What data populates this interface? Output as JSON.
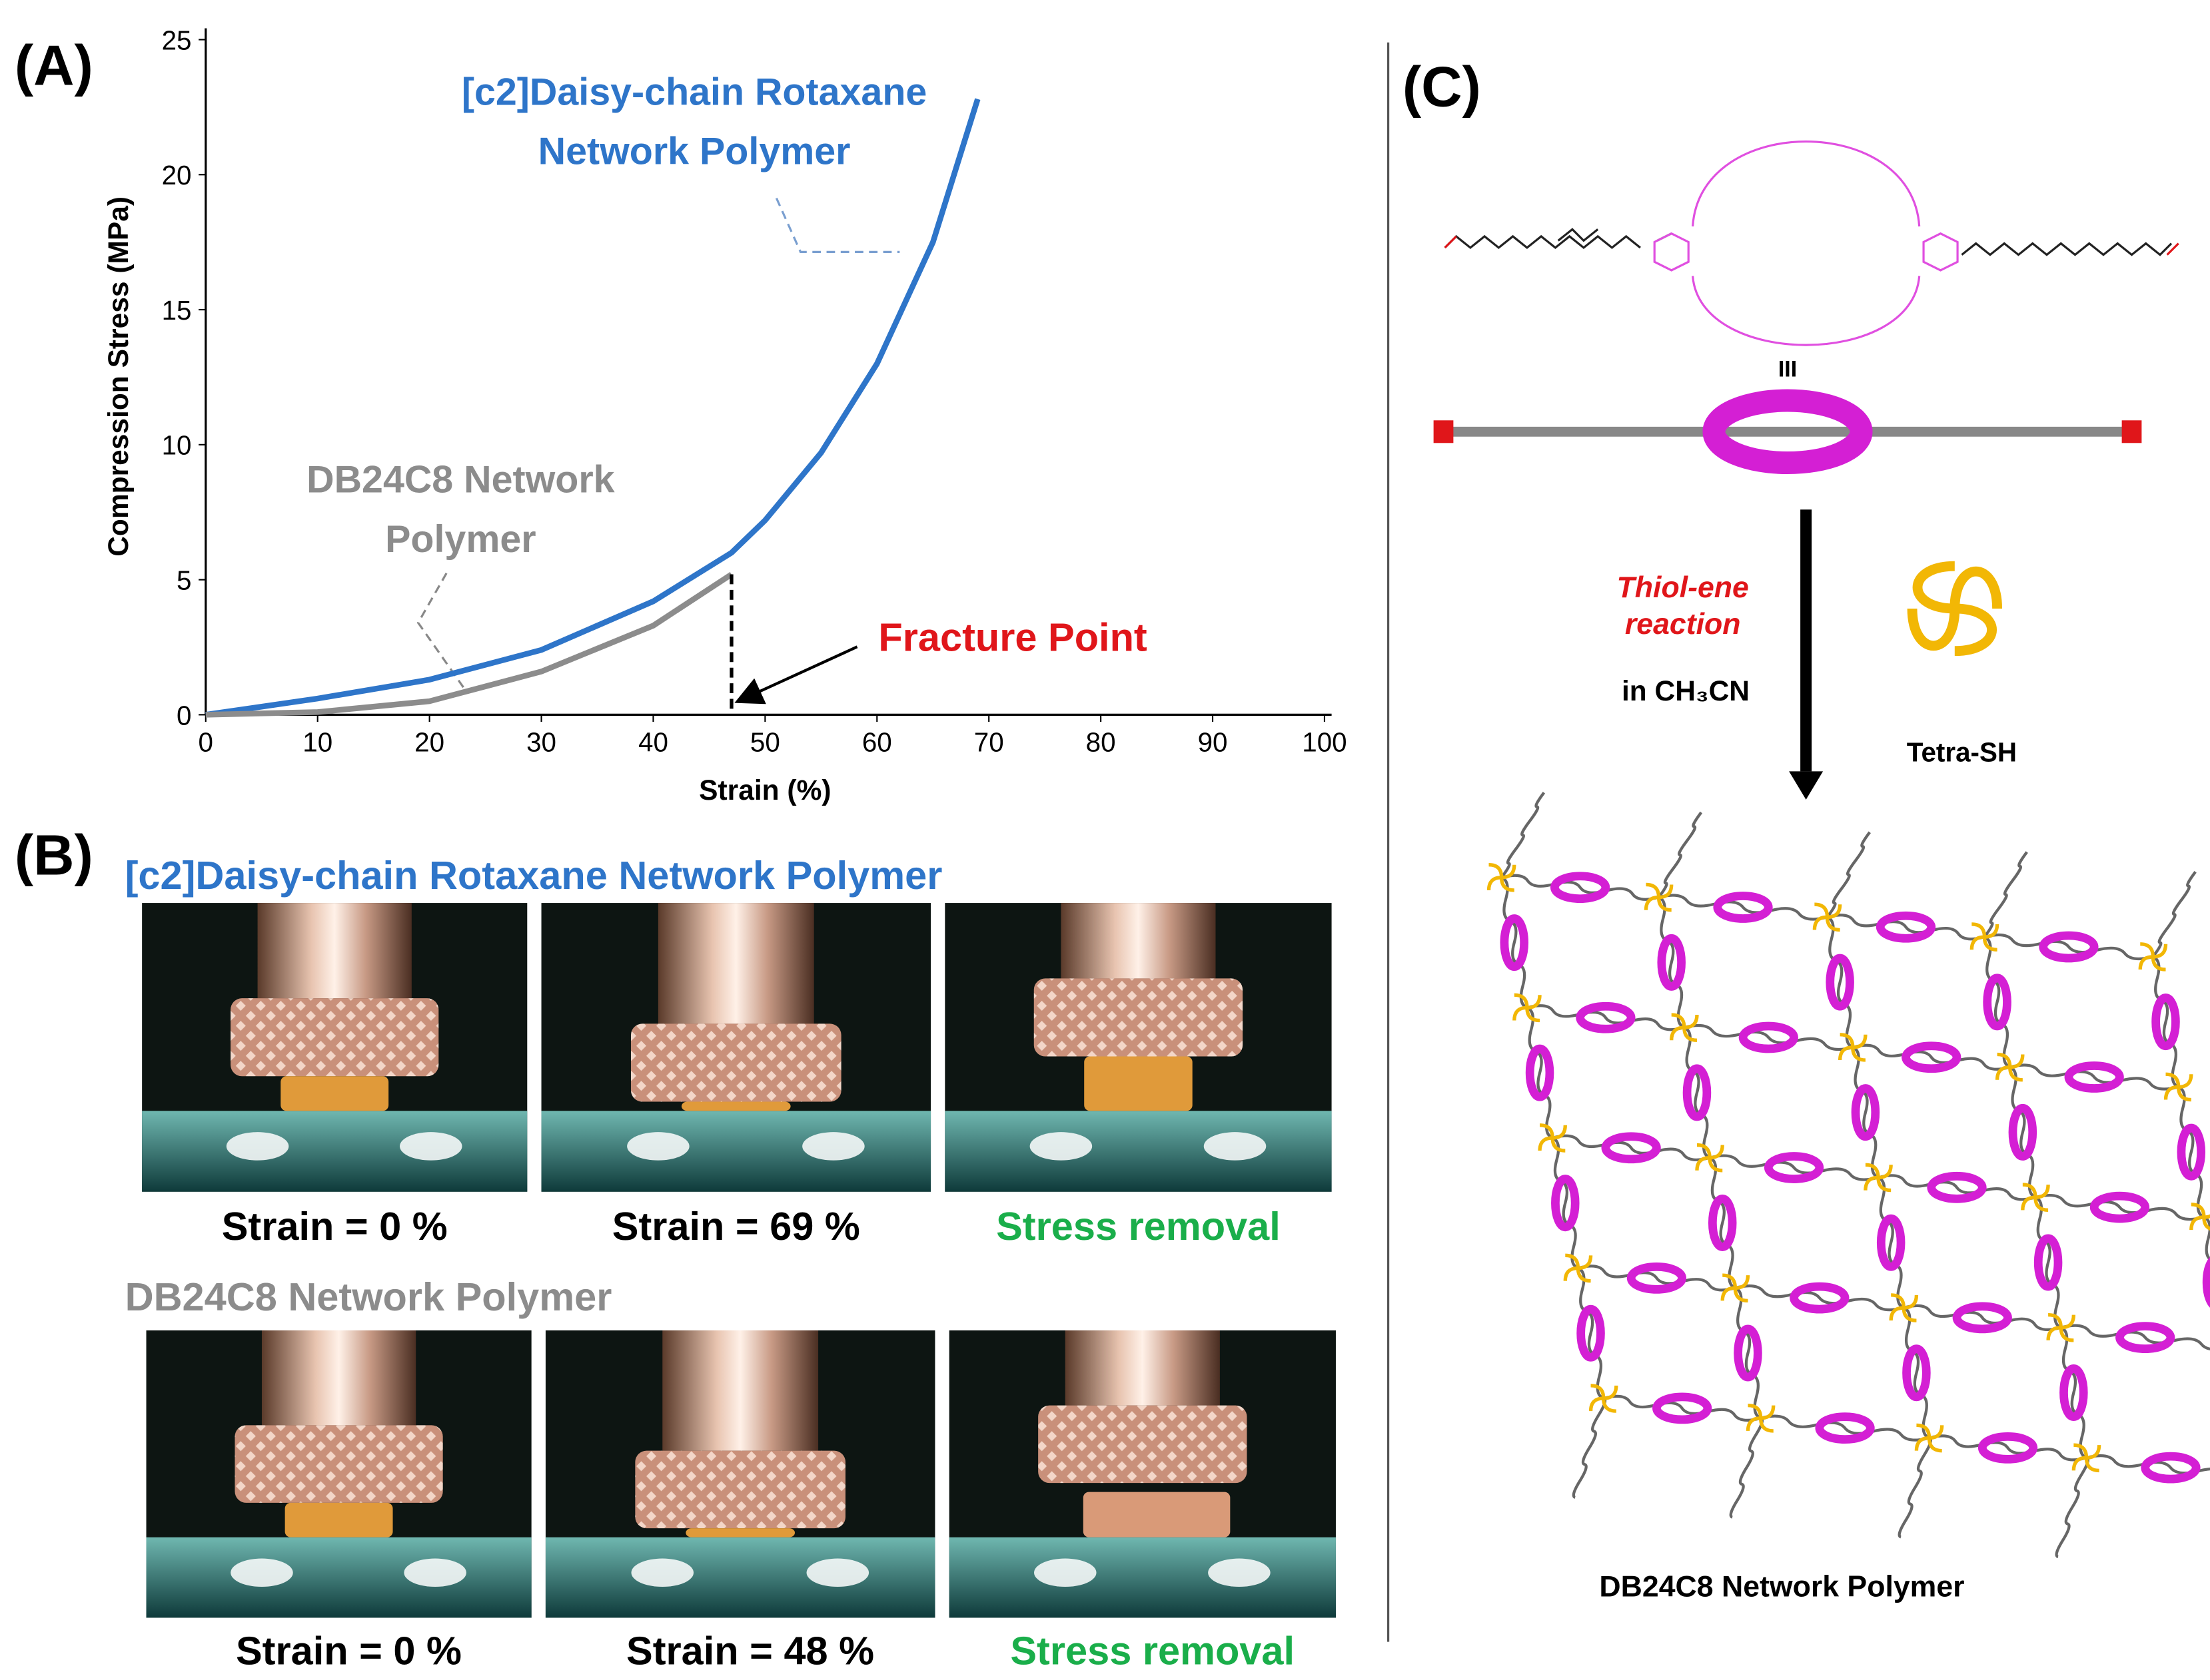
{
  "chart_data": {
    "type": "line",
    "panel_label": "(A)",
    "xlabel": "Strain (%)",
    "ylabel": "Compression  Stress (MPa)",
    "xlim": [
      0,
      100
    ],
    "xticks": [
      0,
      10,
      20,
      30,
      40,
      50,
      60,
      70,
      80,
      90,
      100
    ],
    "ylim": [
      0,
      25
    ],
    "yticks": [
      0,
      5,
      10,
      15,
      20,
      25
    ],
    "series": [
      {
        "name": "[c2]Daisy-chain Rotaxane Network Polymer",
        "color": "#2e75c9",
        "x": [
          0,
          10,
          20,
          30,
          40,
          47,
          50,
          55,
          60,
          65,
          69
        ],
        "values": [
          0,
          0.6,
          1.3,
          2.4,
          4.2,
          6.0,
          7.2,
          9.7,
          13.0,
          17.5,
          22.8
        ]
      },
      {
        "name": "DB24C8 Network Polymer",
        "color": "#8c8c8c",
        "x": [
          0,
          10,
          20,
          30,
          40,
          47
        ],
        "values": [
          0,
          0.1,
          0.5,
          1.6,
          3.3,
          5.2
        ]
      }
    ],
    "annotations": [
      "Fracture Point"
    ]
  },
  "panel_b": {
    "label": "(B)",
    "rows": [
      {
        "title": "[c2]Daisy-chain Rotaxane  Network Polymer",
        "captions": [
          "Strain = 0 %",
          "Strain = 69 %",
          "Stress removal"
        ]
      },
      {
        "title": "DB24C8 Network Polymer",
        "captions": [
          "Strain = 0 %",
          "Strain = 48 %",
          "Stress removal"
        ]
      }
    ]
  },
  "panel_c": {
    "label": "(C)",
    "symbol": "III",
    "reaction": "Thiol-ene reaction",
    "solvent": "in CH₃CN",
    "reagent": "Tetra-SH",
    "product": "DB24C8 Network Polymer"
  }
}
